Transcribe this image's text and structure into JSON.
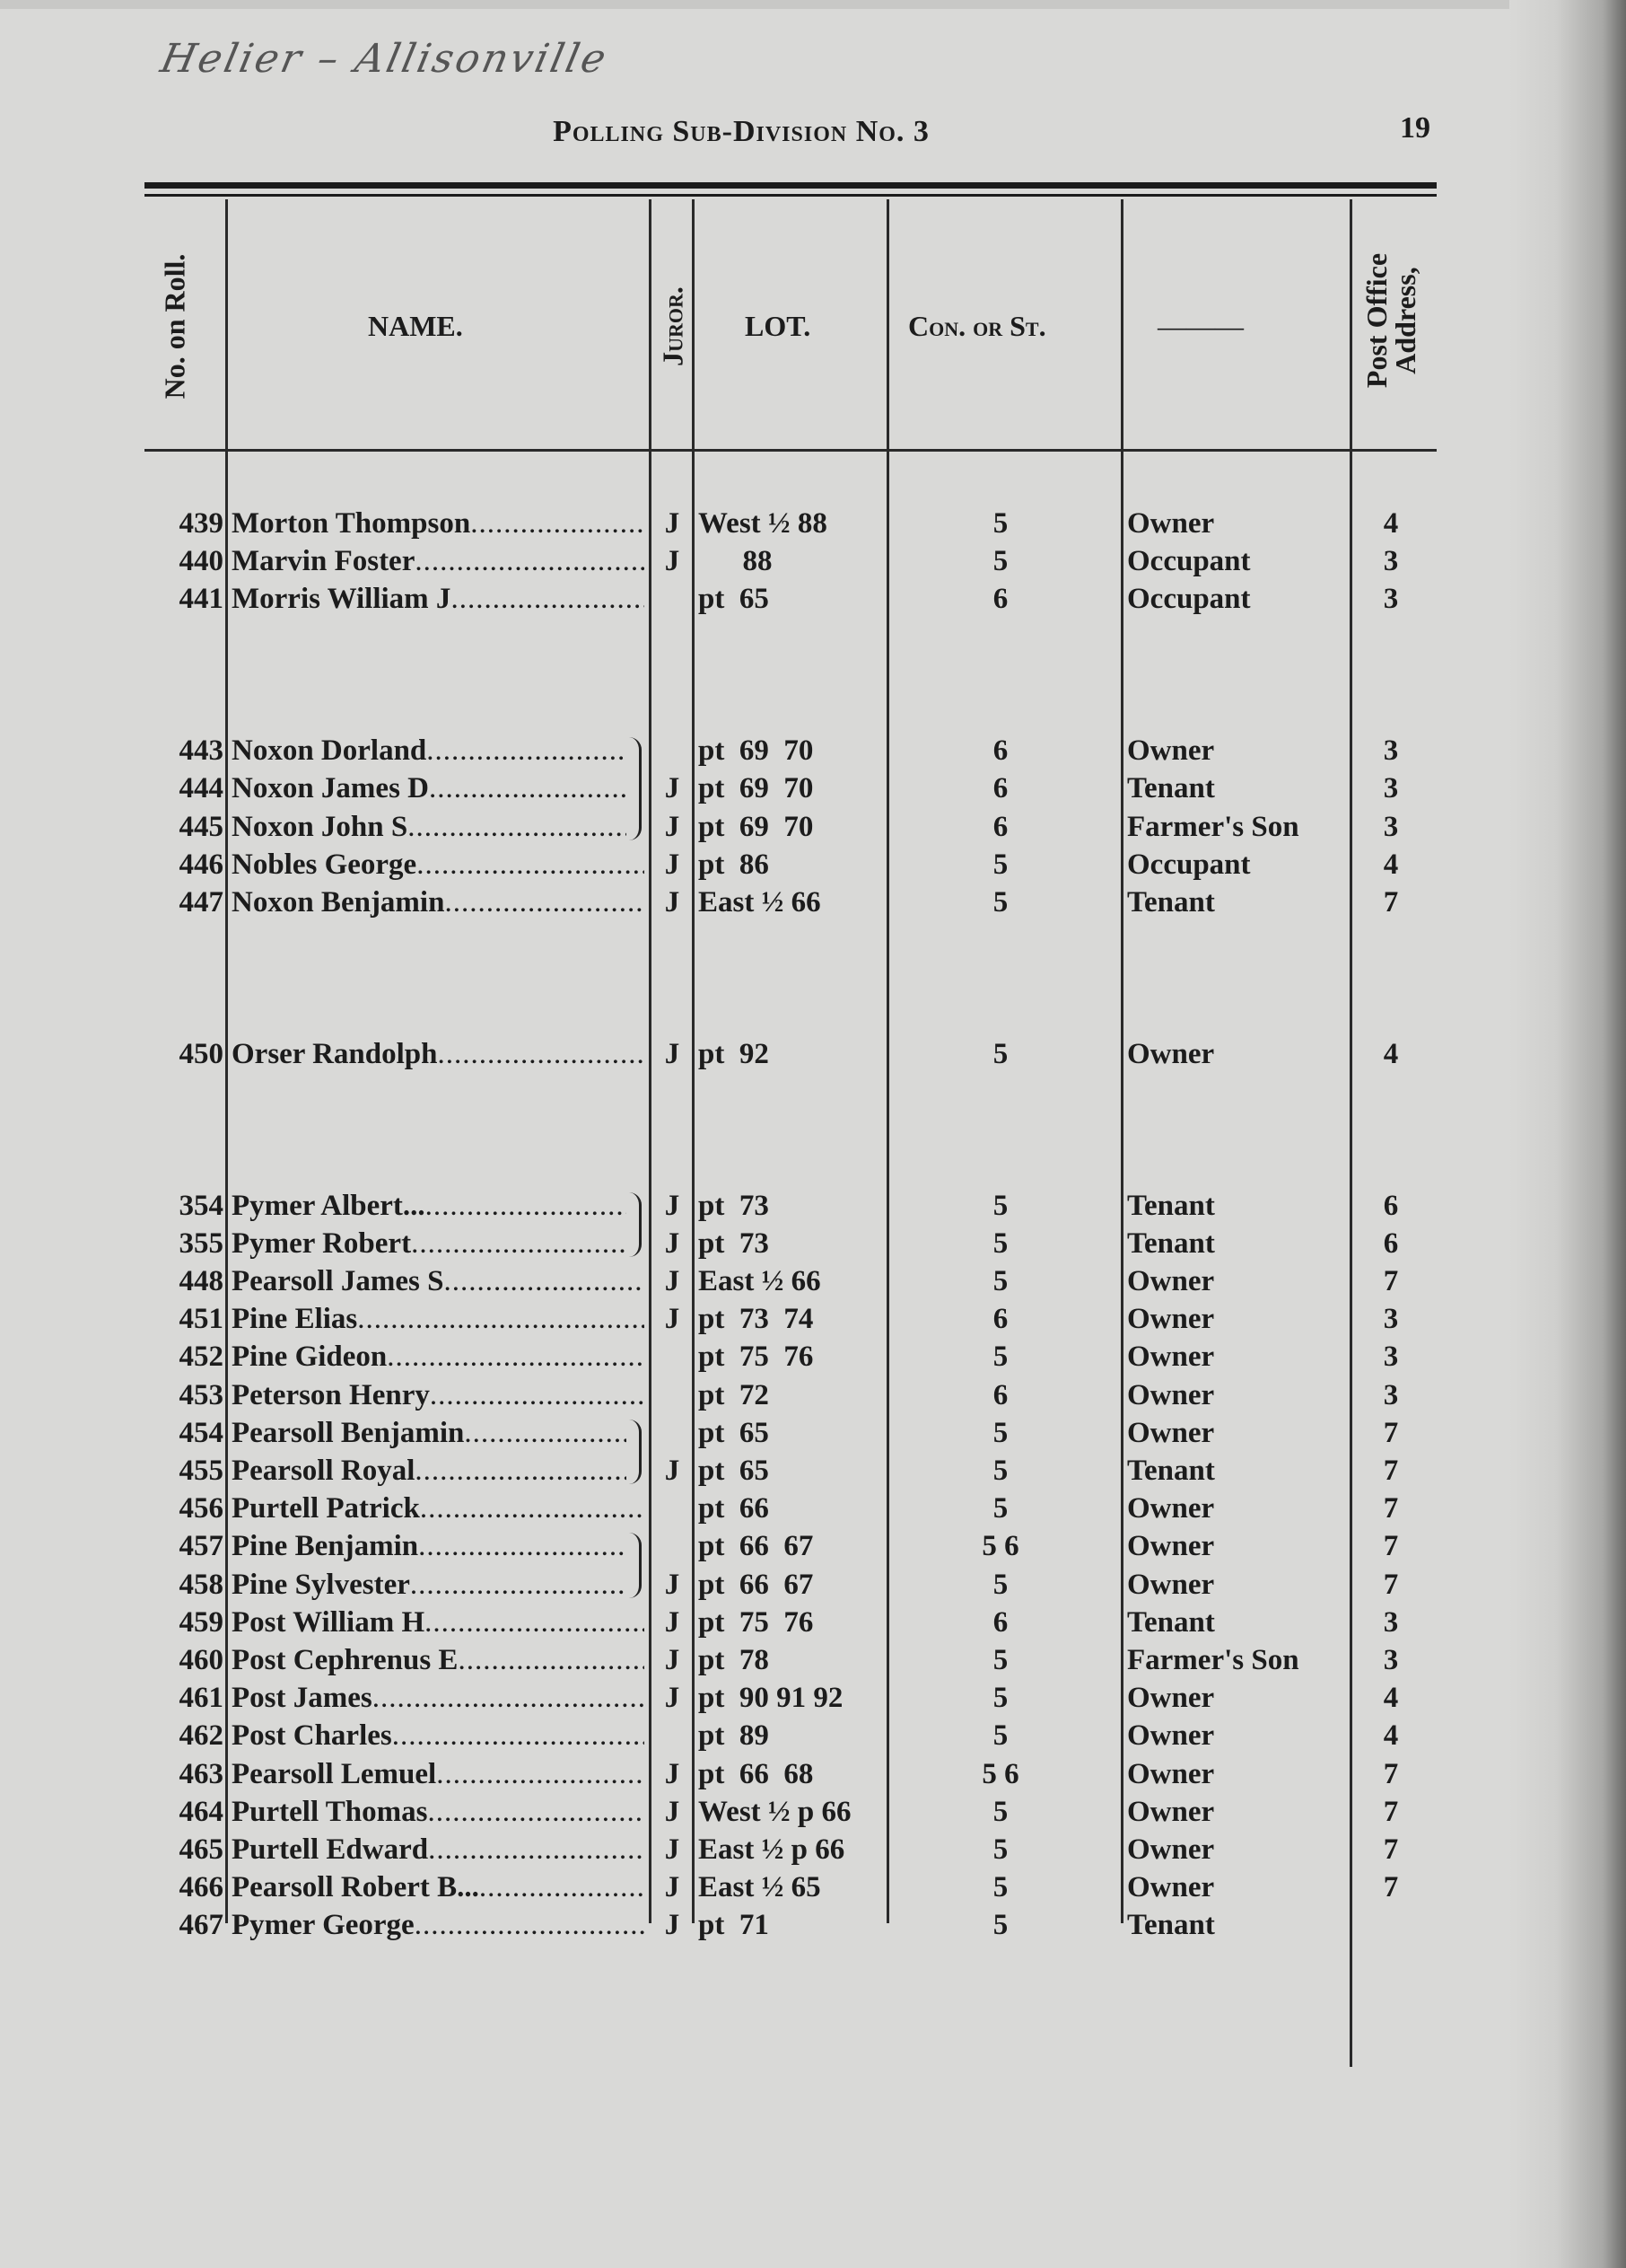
{
  "handwritten_note": "Helier – Allisonville",
  "header": {
    "title": "Polling Sub-Division No. 3",
    "page_number": "19"
  },
  "columns": {
    "no": "No. on Roll.",
    "name": "NAME.",
    "juror": "Juror.",
    "lot": "LOT.",
    "con": "Con. or St.",
    "status": "———",
    "po_line1": "Post Office",
    "po_line2": "Address,"
  },
  "rows": [
    {
      "no": "439",
      "name": "Morton Thompson",
      "juror": "J",
      "lot": "West ½ 88",
      "con": "5",
      "status": "Owner",
      "po": "4"
    },
    {
      "no": "440",
      "name": "Marvin Foster",
      "juror": "J",
      "lot": "      88",
      "con": "5",
      "status": "Occupant",
      "po": "3"
    },
    {
      "no": "441",
      "name": "Morris William J",
      "juror": "",
      "lot": "pt  65",
      "con": "6",
      "status": "Occupant",
      "po": "3"
    },
    null,
    null,
    null,
    {
      "no": "443",
      "name": "Noxon Dorland",
      "juror": "",
      "lot": "pt  69  70",
      "con": "6",
      "status": "Owner",
      "po": "3",
      "brace": "start"
    },
    {
      "no": "444",
      "name": "Noxon James D",
      "juror": "J",
      "lot": "pt  69  70",
      "con": "6",
      "status": "Tenant",
      "po": "3",
      "brace": "mid"
    },
    {
      "no": "445",
      "name": "Noxon John S",
      "juror": "J",
      "lot": "pt  69  70",
      "con": "6",
      "status": "Farmer's Son",
      "po": "3",
      "brace": "end"
    },
    {
      "no": "446",
      "name": "Nobles George",
      "juror": "J",
      "lot": "pt  86",
      "con": "5",
      "status": "Occupant",
      "po": "4"
    },
    {
      "no": "447",
      "name": "Noxon Benjamin",
      "juror": "J",
      "lot": "East ½ 66",
      "con": "5",
      "status": "Tenant",
      "po": "7"
    },
    null,
    null,
    null,
    {
      "no": "450",
      "name": "Orser Randolph",
      "juror": "J",
      "lot": "pt  92",
      "con": "5",
      "status": "Owner",
      "po": "4"
    },
    null,
    null,
    null,
    {
      "no": "354",
      "name": "Pymer Albert...",
      "juror": "J",
      "lot": "pt  73",
      "con": "5",
      "status": "Tenant",
      "po": "6",
      "brace": "start"
    },
    {
      "no": "355",
      "name": "Pymer  Robert",
      "juror": "J",
      "lot": "pt  73",
      "con": "5",
      "status": "Tenant",
      "po": "6",
      "brace": "end"
    },
    {
      "no": "448",
      "name": "Pearsoll James S",
      "juror": "J",
      "lot": "East ½ 66",
      "con": "5",
      "status": "Owner",
      "po": "7"
    },
    {
      "no": "451",
      "name": "Pine Elias",
      "juror": "J",
      "lot": "pt  73  74",
      "con": "6",
      "status": "Owner",
      "po": "3"
    },
    {
      "no": "452",
      "name": "Pine Gideon",
      "juror": "",
      "lot": "pt  75  76",
      "con": "5",
      "status": "Owner",
      "po": "3"
    },
    {
      "no": "453",
      "name": "Peterson Henry",
      "juror": "",
      "lot": "pt  72",
      "con": "6",
      "status": "Owner",
      "po": "3"
    },
    {
      "no": "454",
      "name": "Pearsoll Benjamin",
      "juror": "",
      "lot": "pt  65",
      "con": "5",
      "status": "Owner",
      "po": "7",
      "brace": "start"
    },
    {
      "no": "455",
      "name": "Pearsoll  Royal",
      "juror": "J",
      "lot": "pt  65",
      "con": "5",
      "status": "Tenant",
      "po": "7",
      "brace": "end"
    },
    {
      "no": "456",
      "name": "Purtell Patrick",
      "juror": "",
      "lot": "pt  66",
      "con": "5",
      "status": "Owner",
      "po": "7"
    },
    {
      "no": "457",
      "name": "Pine Benjamin",
      "juror": "",
      "lot": "pt  66  67",
      "con": "5 6",
      "status": "Owner",
      "po": "7",
      "brace": "start"
    },
    {
      "no": "458",
      "name": "Pine  Sylvester",
      "juror": "J",
      "lot": "pt  66  67",
      "con": "5",
      "status": "Owner",
      "po": "7",
      "brace": "end"
    },
    {
      "no": "459",
      "name": "Post William H",
      "juror": "J",
      "lot": "pt  75  76",
      "con": "6",
      "status": "Tenant",
      "po": "3"
    },
    {
      "no": "460",
      "name": "Post Cephrenus E",
      "juror": "J",
      "lot": "pt  78",
      "con": "5",
      "status": "Farmer's Son",
      "po": "3"
    },
    {
      "no": "461",
      "name": "Post  James",
      "juror": "J",
      "lot": "pt  90 91 92",
      "con": "5",
      "status": "Owner",
      "po": "4"
    },
    {
      "no": "462",
      "name": "Post Charles",
      "juror": "",
      "lot": "pt  89",
      "con": "5",
      "status": "Owner",
      "po": "4"
    },
    {
      "no": "463",
      "name": "Pearsoll Lemuel",
      "juror": "J",
      "lot": "pt  66  68",
      "con": "5 6",
      "status": "Owner",
      "po": "7"
    },
    {
      "no": "464",
      "name": "Purtell Thomas",
      "juror": "J",
      "lot": "West ½ p 66",
      "con": "5",
      "status": "Owner",
      "po": "7"
    },
    {
      "no": "465",
      "name": "Purtell Edward",
      "juror": "J",
      "lot": "East ½ p 66",
      "con": "5",
      "status": "Owner",
      "po": "7"
    },
    {
      "no": "466",
      "name": "Pearsoll Robert B...",
      "juror": "J",
      "lot": "East ½ 65",
      "con": "5",
      "status": "Owner",
      "po": "7"
    },
    {
      "no": "467",
      "name": "Pymer George",
      "juror": "J",
      "lot": "pt  71",
      "con": "5",
      "status": "Tenant",
      "po": ""
    }
  ]
}
